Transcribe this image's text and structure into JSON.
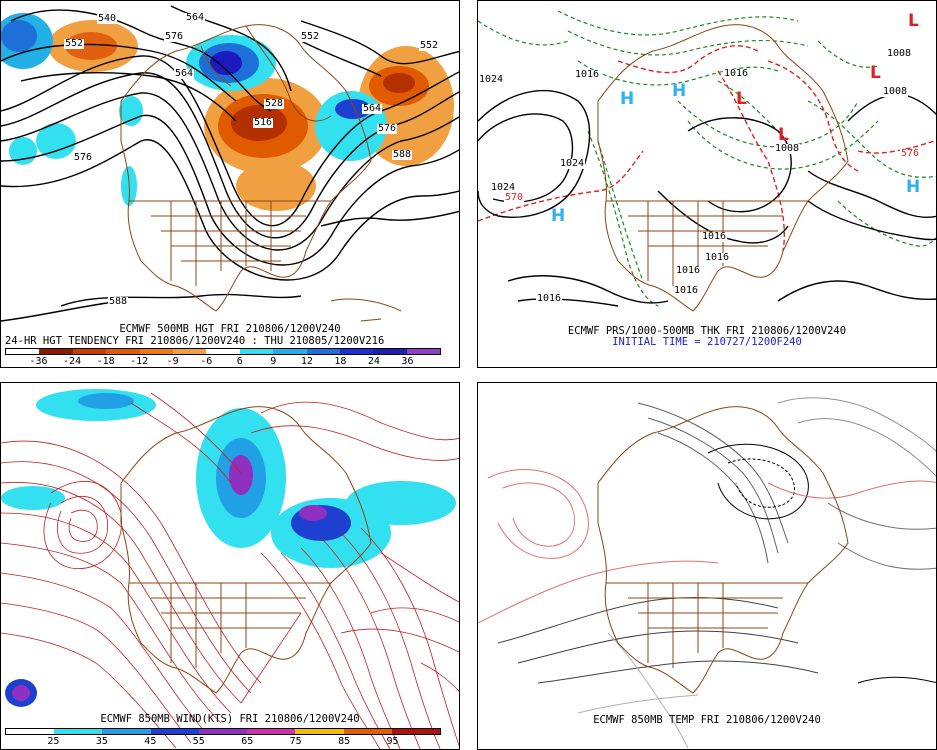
{
  "panels": {
    "p1": {
      "caption1": "ECMWF 500MB HGT FRI 210806/1200V240",
      "caption2": "24-HR HGT TENDENCY FRI 210806/1200V240 : THU 210805/1200V216",
      "colorbar": {
        "ticks": [
          "-36",
          "-24",
          "-18",
          "-12",
          "-9",
          "-6",
          "6",
          "9",
          "12",
          "18",
          "24",
          "36"
        ],
        "colors": [
          "#ffffff",
          "#8b1c00",
          "#c83c00",
          "#e05a00",
          "#f07a10",
          "#f0a040",
          "#ffffff",
          "#33e0f0",
          "#22b0e6",
          "#1e70d8",
          "#1a30d0",
          "#2020b0",
          "#9040c0"
        ]
      },
      "contour_labels": [
        "540",
        "552",
        "564",
        "576",
        "564",
        "552",
        "576",
        "552",
        "588",
        "564",
        "576",
        "588",
        "528",
        "516",
        "588"
      ]
    },
    "p2": {
      "caption1": "ECMWF PRS/1000-500MB THK FRI 210806/1200V240",
      "caption2": "INITIAL TIME = 210727/1200F240",
      "pressure_labels": [
        "1024",
        "1024",
        "1016",
        "1016",
        "1016",
        "1008",
        "1008",
        "1008",
        "1016",
        "1024",
        "1016",
        "1016",
        "1016",
        "570",
        "576"
      ],
      "high_marker": "H",
      "low_marker": "L"
    },
    "p3": {
      "caption1": "ECMWF 850MB WIND(KTS) FRI 210806/1200V240",
      "colorbar": {
        "ticks": [
          "25",
          "35",
          "45",
          "55",
          "65",
          "75",
          "85",
          "95"
        ],
        "colors": [
          "#ffffff",
          "#33e0f0",
          "#22a0e6",
          "#1e40d0",
          "#9030c0",
          "#d030b0",
          "#f0c000",
          "#e06000",
          "#b01010"
        ]
      }
    },
    "p4": {
      "caption1": "ECMWF 850MB TEMP FRI 210806/1200V240"
    }
  }
}
